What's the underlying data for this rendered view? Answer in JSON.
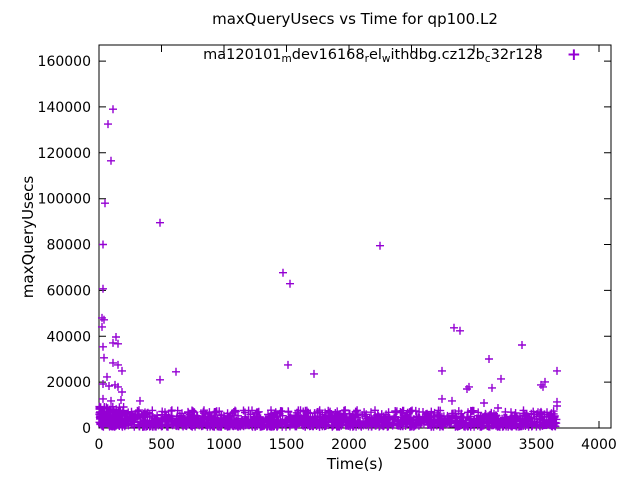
{
  "chart_data": {
    "type": "scatter",
    "title": "maxQueryUsecs vs Time for qp100.L2",
    "xlabel": "Time(s)",
    "ylabel": "maxQueryUsecs",
    "marker": "plus",
    "marker_color": "#9400d3",
    "legend_position": "top-center-inside",
    "x_range": [
      0,
      4096
    ],
    "y_range": [
      0,
      167000
    ],
    "x_ticks": [
      0,
      500,
      1000,
      1500,
      2000,
      2500,
      3000,
      3500,
      4000
    ],
    "y_ticks": [
      0,
      20000,
      40000,
      60000,
      80000,
      100000,
      120000,
      140000,
      160000
    ],
    "grid": "off",
    "series_name_plain": "ma120101_mdev16168_rel_withdbg.cz12b_c32r128",
    "legend_segments": [
      {
        "text": "ma120101"
      },
      {
        "sub": "m"
      },
      {
        "text": "dev16168"
      },
      {
        "sub": "r"
      },
      {
        "text": "el"
      },
      {
        "sub": "w"
      },
      {
        "text": "ithdbg.cz12b"
      },
      {
        "sub": "c"
      },
      {
        "text": "32r128"
      }
    ],
    "outlier_points": [
      [
        112,
        139000
      ],
      [
        72,
        132500
      ],
      [
        96,
        116500
      ],
      [
        48,
        98000
      ],
      [
        488,
        89500
      ],
      [
        32,
        80000
      ],
      [
        2248,
        79500
      ],
      [
        1472,
        67700
      ],
      [
        1528,
        62900
      ],
      [
        32,
        60700
      ],
      [
        24,
        48000
      ],
      [
        40,
        47200
      ],
      [
        24,
        44100
      ],
      [
        2840,
        43700
      ],
      [
        2888,
        42400
      ],
      [
        136,
        39700
      ],
      [
        112,
        37100
      ],
      [
        152,
        36700
      ],
      [
        3384,
        36200
      ],
      [
        32,
        35400
      ],
      [
        40,
        30600
      ],
      [
        3120,
        30100
      ],
      [
        112,
        28400
      ],
      [
        1512,
        27500
      ],
      [
        152,
        27500
      ],
      [
        184,
        24900
      ],
      [
        616,
        24500
      ],
      [
        3664,
        24900
      ],
      [
        2744,
        24900
      ],
      [
        1720,
        23600
      ],
      [
        64,
        22300
      ],
      [
        3216,
        21400
      ],
      [
        488,
        21000
      ],
      [
        3568,
        20100
      ],
      [
        32,
        19200
      ],
      [
        128,
        18800
      ],
      [
        3536,
        18800
      ],
      [
        80,
        18300
      ],
      [
        3552,
        17900
      ],
      [
        152,
        17900
      ],
      [
        2960,
        17900
      ],
      [
        2944,
        17000
      ],
      [
        3144,
        17500
      ],
      [
        184,
        15700
      ],
      [
        2744,
        12700
      ],
      [
        32,
        12700
      ],
      [
        176,
        12200
      ],
      [
        96,
        11800
      ],
      [
        328,
        11800
      ],
      [
        2824,
        11800
      ],
      [
        3080,
        10900
      ],
      [
        3664,
        11400
      ],
      [
        3664,
        9600
      ],
      [
        3192,
        8700
      ],
      [
        3536,
        7000
      ],
      [
        3528,
        6500
      ]
    ],
    "dense_band": {
      "description": "dense noise band of samples along the bottom of the plot",
      "t_min": 0,
      "t_max": 3660,
      "count": 1500,
      "v_core_min": 500,
      "v_core_max": 5200,
      "spike_chance": 0.16,
      "v_spike_max": 7800,
      "left_cluster": {
        "t_max": 200,
        "count": 90,
        "v_max": 9500
      },
      "seed": 42
    }
  }
}
